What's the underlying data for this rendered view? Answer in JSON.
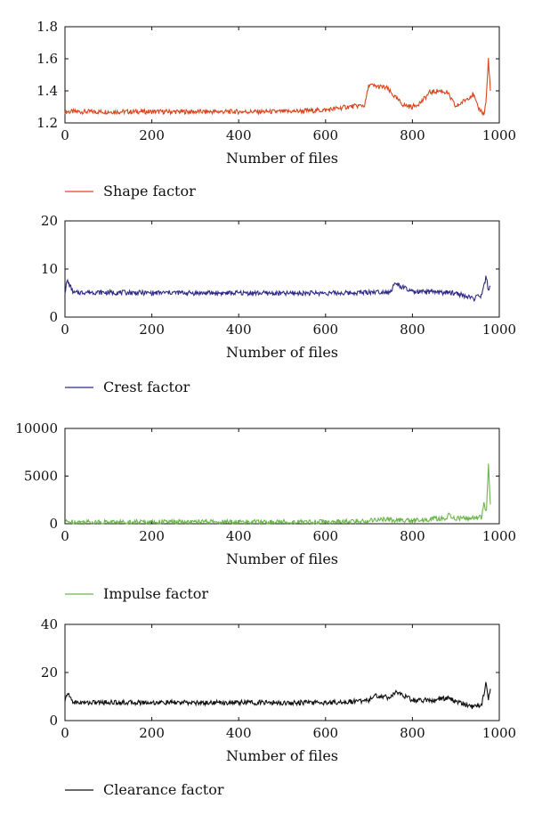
{
  "chart_data": [
    {
      "type": "line",
      "xlabel": "Number of files",
      "ylabel": "",
      "xlim": [
        0,
        1000
      ],
      "ylim": [
        1.2,
        1.8
      ],
      "xticks": [
        0,
        200,
        400,
        600,
        800,
        1000
      ],
      "yticks": [
        1.2,
        1.4,
        1.6,
        1.8
      ],
      "xtick_labels": [
        "0",
        "200",
        "400",
        "600",
        "800",
        "1000"
      ],
      "ytick_labels": [
        "1.2",
        "1.4",
        "1.6",
        "1.8"
      ],
      "grid": false,
      "legend_position": "bottom-left, below axis",
      "series": [
        {
          "name": "Shape factor",
          "color": "#d9471f",
          "x": [
            0,
            50,
            100,
            150,
            200,
            250,
            300,
            350,
            400,
            450,
            500,
            550,
            600,
            650,
            690,
            700,
            710,
            740,
            760,
            780,
            800,
            820,
            840,
            860,
            880,
            900,
            920,
            940,
            950,
            960,
            965,
            970,
            975,
            980
          ],
          "values": [
            1.27,
            1.27,
            1.27,
            1.27,
            1.27,
            1.27,
            1.27,
            1.27,
            1.27,
            1.27,
            1.27,
            1.275,
            1.28,
            1.3,
            1.31,
            1.44,
            1.43,
            1.42,
            1.36,
            1.31,
            1.3,
            1.33,
            1.39,
            1.4,
            1.39,
            1.3,
            1.34,
            1.38,
            1.3,
            1.27,
            1.25,
            1.35,
            1.6,
            1.38
          ]
        }
      ]
    },
    {
      "type": "line",
      "xlabel": "Number of files",
      "ylabel": "",
      "xlim": [
        0,
        1000
      ],
      "ylim": [
        0,
        20
      ],
      "xticks": [
        0,
        200,
        400,
        600,
        800,
        1000
      ],
      "yticks": [
        0,
        10,
        20
      ],
      "xtick_labels": [
        "0",
        "200",
        "400",
        "600",
        "800",
        "1000"
      ],
      "ytick_labels": [
        "0",
        "10",
        "20"
      ],
      "grid": false,
      "legend_position": "bottom-left, below axis",
      "series": [
        {
          "name": "Crest factor",
          "color": "#2e2a86",
          "x": [
            0,
            5,
            20,
            50,
            100,
            150,
            200,
            250,
            300,
            350,
            400,
            450,
            500,
            550,
            600,
            650,
            700,
            750,
            760,
            800,
            850,
            900,
            940,
            960,
            970,
            975,
            980
          ],
          "values": [
            5.2,
            7.6,
            5.0,
            5.2,
            5.1,
            5.1,
            5.0,
            5.1,
            5.0,
            5.0,
            5.0,
            5.0,
            4.9,
            5.0,
            5.0,
            5.0,
            5.2,
            5.3,
            7.0,
            5.2,
            5.2,
            5.0,
            3.8,
            4.5,
            8.5,
            5.5,
            7.0
          ]
        }
      ]
    },
    {
      "type": "line",
      "xlabel": "Number of files",
      "ylabel": "",
      "xlim": [
        0,
        1000
      ],
      "ylim": [
        0,
        10000
      ],
      "xticks": [
        0,
        200,
        400,
        600,
        800,
        1000
      ],
      "yticks": [
        0,
        5000,
        10000
      ],
      "xtick_labels": [
        "0",
        "200",
        "400",
        "600",
        "800",
        "1000"
      ],
      "ytick_labels": [
        "0",
        "5000",
        "10000"
      ],
      "grid": false,
      "legend_position": "bottom-left, below axis",
      "series": [
        {
          "name": "Impulse factor",
          "color": "#6ab64a",
          "x": [
            0,
            50,
            100,
            200,
            300,
            400,
            500,
            600,
            650,
            700,
            710,
            750,
            800,
            850,
            880,
            885,
            890,
            920,
            950,
            960,
            965,
            970,
            975,
            980
          ],
          "values": [
            200,
            180,
            180,
            180,
            180,
            180,
            180,
            190,
            220,
            300,
            450,
            400,
            300,
            500,
            600,
            1000,
            550,
            600,
            600,
            700,
            2500,
            1000,
            6300,
            1500
          ]
        }
      ]
    },
    {
      "type": "line",
      "xlabel": "Number of files",
      "ylabel": "",
      "xlim": [
        0,
        1000
      ],
      "ylim": [
        0,
        40
      ],
      "xticks": [
        0,
        200,
        400,
        600,
        800,
        1000
      ],
      "yticks": [
        0,
        20,
        40
      ],
      "xtick_labels": [
        "0",
        "200",
        "400",
        "600",
        "800",
        "1000"
      ],
      "ytick_labels": [
        "0",
        "20",
        "40"
      ],
      "grid": false,
      "legend_position": "bottom-left, below axis",
      "series": [
        {
          "name": "Clearance factor",
          "color": "#111111",
          "x": [
            0,
            5,
            20,
            50,
            100,
            150,
            200,
            250,
            300,
            350,
            400,
            450,
            500,
            550,
            600,
            650,
            700,
            710,
            750,
            760,
            800,
            850,
            880,
            900,
            940,
            960,
            970,
            975,
            980
          ],
          "values": [
            7.5,
            11.5,
            7.5,
            7.5,
            7.6,
            7.5,
            7.5,
            7.5,
            7.4,
            7.5,
            7.5,
            7.5,
            7.4,
            7.5,
            7.5,
            7.8,
            8.5,
            10.5,
            9.5,
            12.0,
            8.5,
            8.5,
            9.5,
            8.0,
            5.5,
            7.0,
            16.0,
            9.0,
            13.0
          ]
        }
      ]
    }
  ]
}
